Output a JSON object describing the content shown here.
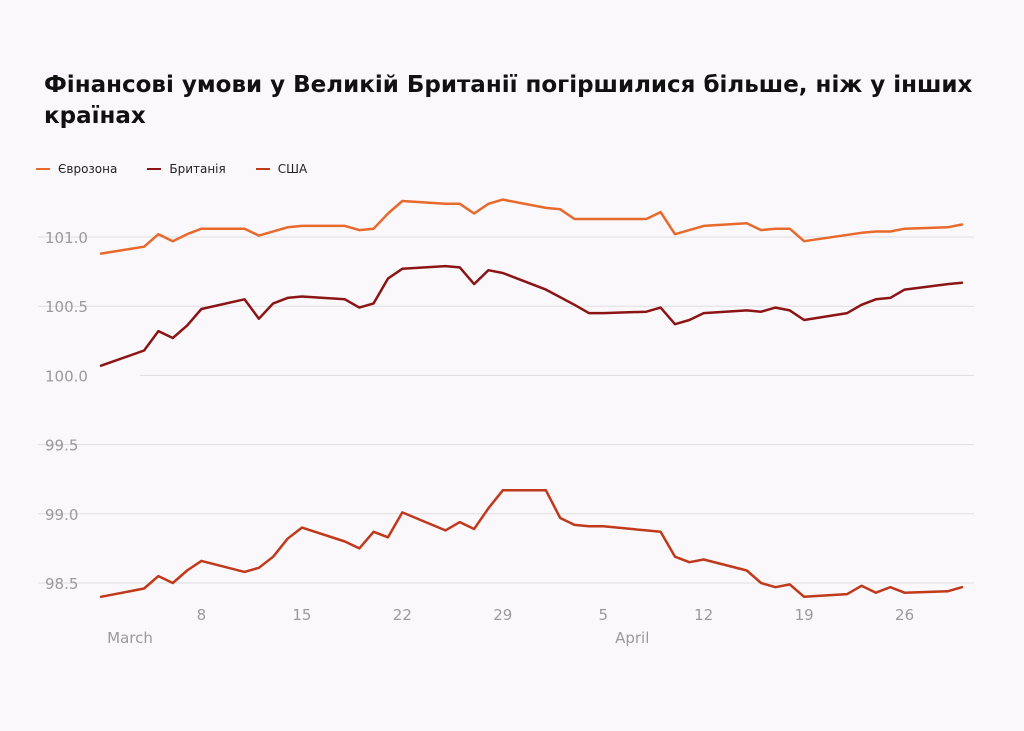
{
  "chart_data": {
    "type": "line",
    "title": "Фінансові умови у Великій Британії погіршилися більше, ніж у інших країнах",
    "ylim": [
      98.4,
      101.25
    ],
    "y_ticks": [
      "101.0",
      "100.5",
      "100.0",
      "99.5",
      "99.0",
      "98.5"
    ],
    "x_ticks": [
      {
        "day": 0,
        "label": "March"
      },
      {
        "day": 7,
        "label": "8"
      },
      {
        "day": 14,
        "label": "15"
      },
      {
        "day": 21,
        "label": "22"
      },
      {
        "day": 28,
        "label": "29"
      },
      {
        "day": 35,
        "label": "April"
      }
    ],
    "x_ticks_upper": [
      {
        "day": 35,
        "label": "5"
      },
      {
        "day": 42,
        "label": "12"
      },
      {
        "day": 49,
        "label": "19"
      },
      {
        "day": 56,
        "label": "26"
      }
    ],
    "grid": true,
    "legend_position": "top-left",
    "series": [
      {
        "name": "Єврозона",
        "color": "#e8692c",
        "points": [
          [
            0,
            100.88
          ],
          [
            3,
            100.93
          ],
          [
            4,
            101.02
          ],
          [
            5,
            100.97
          ],
          [
            6,
            101.02
          ],
          [
            7,
            101.06
          ],
          [
            10,
            101.06
          ],
          [
            11,
            101.01
          ],
          [
            13,
            101.07
          ],
          [
            14,
            101.08
          ],
          [
            17,
            101.08
          ],
          [
            18,
            101.05
          ],
          [
            19,
            101.06
          ],
          [
            20,
            101.17
          ],
          [
            21,
            101.26
          ],
          [
            24,
            101.24
          ],
          [
            25,
            101.24
          ],
          [
            26,
            101.17
          ],
          [
            27,
            101.24
          ],
          [
            28,
            101.27
          ],
          [
            31,
            101.21
          ],
          [
            32,
            101.2
          ],
          [
            33,
            101.13
          ],
          [
            38,
            101.13
          ],
          [
            39,
            101.18
          ],
          [
            40,
            101.02
          ],
          [
            42,
            101.08
          ],
          [
            45,
            101.1
          ],
          [
            46,
            101.05
          ],
          [
            47,
            101.06
          ],
          [
            48,
            101.06
          ],
          [
            49,
            100.97
          ],
          [
            53,
            101.03
          ],
          [
            54,
            101.04
          ],
          [
            55,
            101.04
          ],
          [
            56,
            101.06
          ],
          [
            59,
            101.07
          ],
          [
            60,
            101.09
          ]
        ]
      },
      {
        "name": "Британія",
        "color": "#8b1515",
        "points": [
          [
            0,
            100.07
          ],
          [
            3,
            100.18
          ],
          [
            4,
            100.32
          ],
          [
            5,
            100.27
          ],
          [
            6,
            100.36
          ],
          [
            7,
            100.48
          ],
          [
            10,
            100.55
          ],
          [
            11,
            100.41
          ],
          [
            12,
            100.52
          ],
          [
            13,
            100.56
          ],
          [
            14,
            100.57
          ],
          [
            17,
            100.55
          ],
          [
            18,
            100.49
          ],
          [
            19,
            100.52
          ],
          [
            20,
            100.7
          ],
          [
            21,
            100.77
          ],
          [
            24,
            100.79
          ],
          [
            25,
            100.78
          ],
          [
            26,
            100.66
          ],
          [
            27,
            100.76
          ],
          [
            28,
            100.74
          ],
          [
            31,
            100.62
          ],
          [
            33,
            100.51
          ],
          [
            34,
            100.45
          ],
          [
            35,
            100.45
          ],
          [
            38,
            100.46
          ],
          [
            39,
            100.49
          ],
          [
            40,
            100.37
          ],
          [
            41,
            100.4
          ],
          [
            42,
            100.45
          ],
          [
            45,
            100.47
          ],
          [
            46,
            100.46
          ],
          [
            47,
            100.49
          ],
          [
            48,
            100.47
          ],
          [
            49,
            100.4
          ],
          [
            52,
            100.45
          ],
          [
            53,
            100.51
          ],
          [
            54,
            100.55
          ],
          [
            55,
            100.56
          ],
          [
            56,
            100.62
          ],
          [
            59,
            100.66
          ],
          [
            60,
            100.67
          ]
        ]
      },
      {
        "name": "США",
        "color": "#c0391a",
        "points": [
          [
            0,
            98.4
          ],
          [
            3,
            98.46
          ],
          [
            4,
            98.55
          ],
          [
            5,
            98.5
          ],
          [
            6,
            98.59
          ],
          [
            7,
            98.66
          ],
          [
            10,
            98.58
          ],
          [
            11,
            98.61
          ],
          [
            12,
            98.69
          ],
          [
            13,
            98.82
          ],
          [
            14,
            98.9
          ],
          [
            17,
            98.8
          ],
          [
            18,
            98.75
          ],
          [
            19,
            98.87
          ],
          [
            20,
            98.83
          ],
          [
            21,
            99.01
          ],
          [
            24,
            98.88
          ],
          [
            25,
            98.94
          ],
          [
            26,
            98.89
          ],
          [
            27,
            99.04
          ],
          [
            28,
            99.17
          ],
          [
            31,
            99.17
          ],
          [
            32,
            98.97
          ],
          [
            33,
            98.92
          ],
          [
            34,
            98.91
          ],
          [
            35,
            98.91
          ],
          [
            38,
            98.88
          ],
          [
            39,
            98.87
          ],
          [
            40,
            98.69
          ],
          [
            41,
            98.65
          ],
          [
            42,
            98.67
          ],
          [
            45,
            98.59
          ],
          [
            46,
            98.5
          ],
          [
            47,
            98.47
          ],
          [
            48,
            98.49
          ],
          [
            49,
            98.4
          ],
          [
            52,
            98.42
          ],
          [
            53,
            98.48
          ],
          [
            54,
            98.43
          ],
          [
            55,
            98.47
          ],
          [
            56,
            98.43
          ],
          [
            59,
            98.44
          ],
          [
            60,
            98.47
          ]
        ]
      }
    ]
  }
}
